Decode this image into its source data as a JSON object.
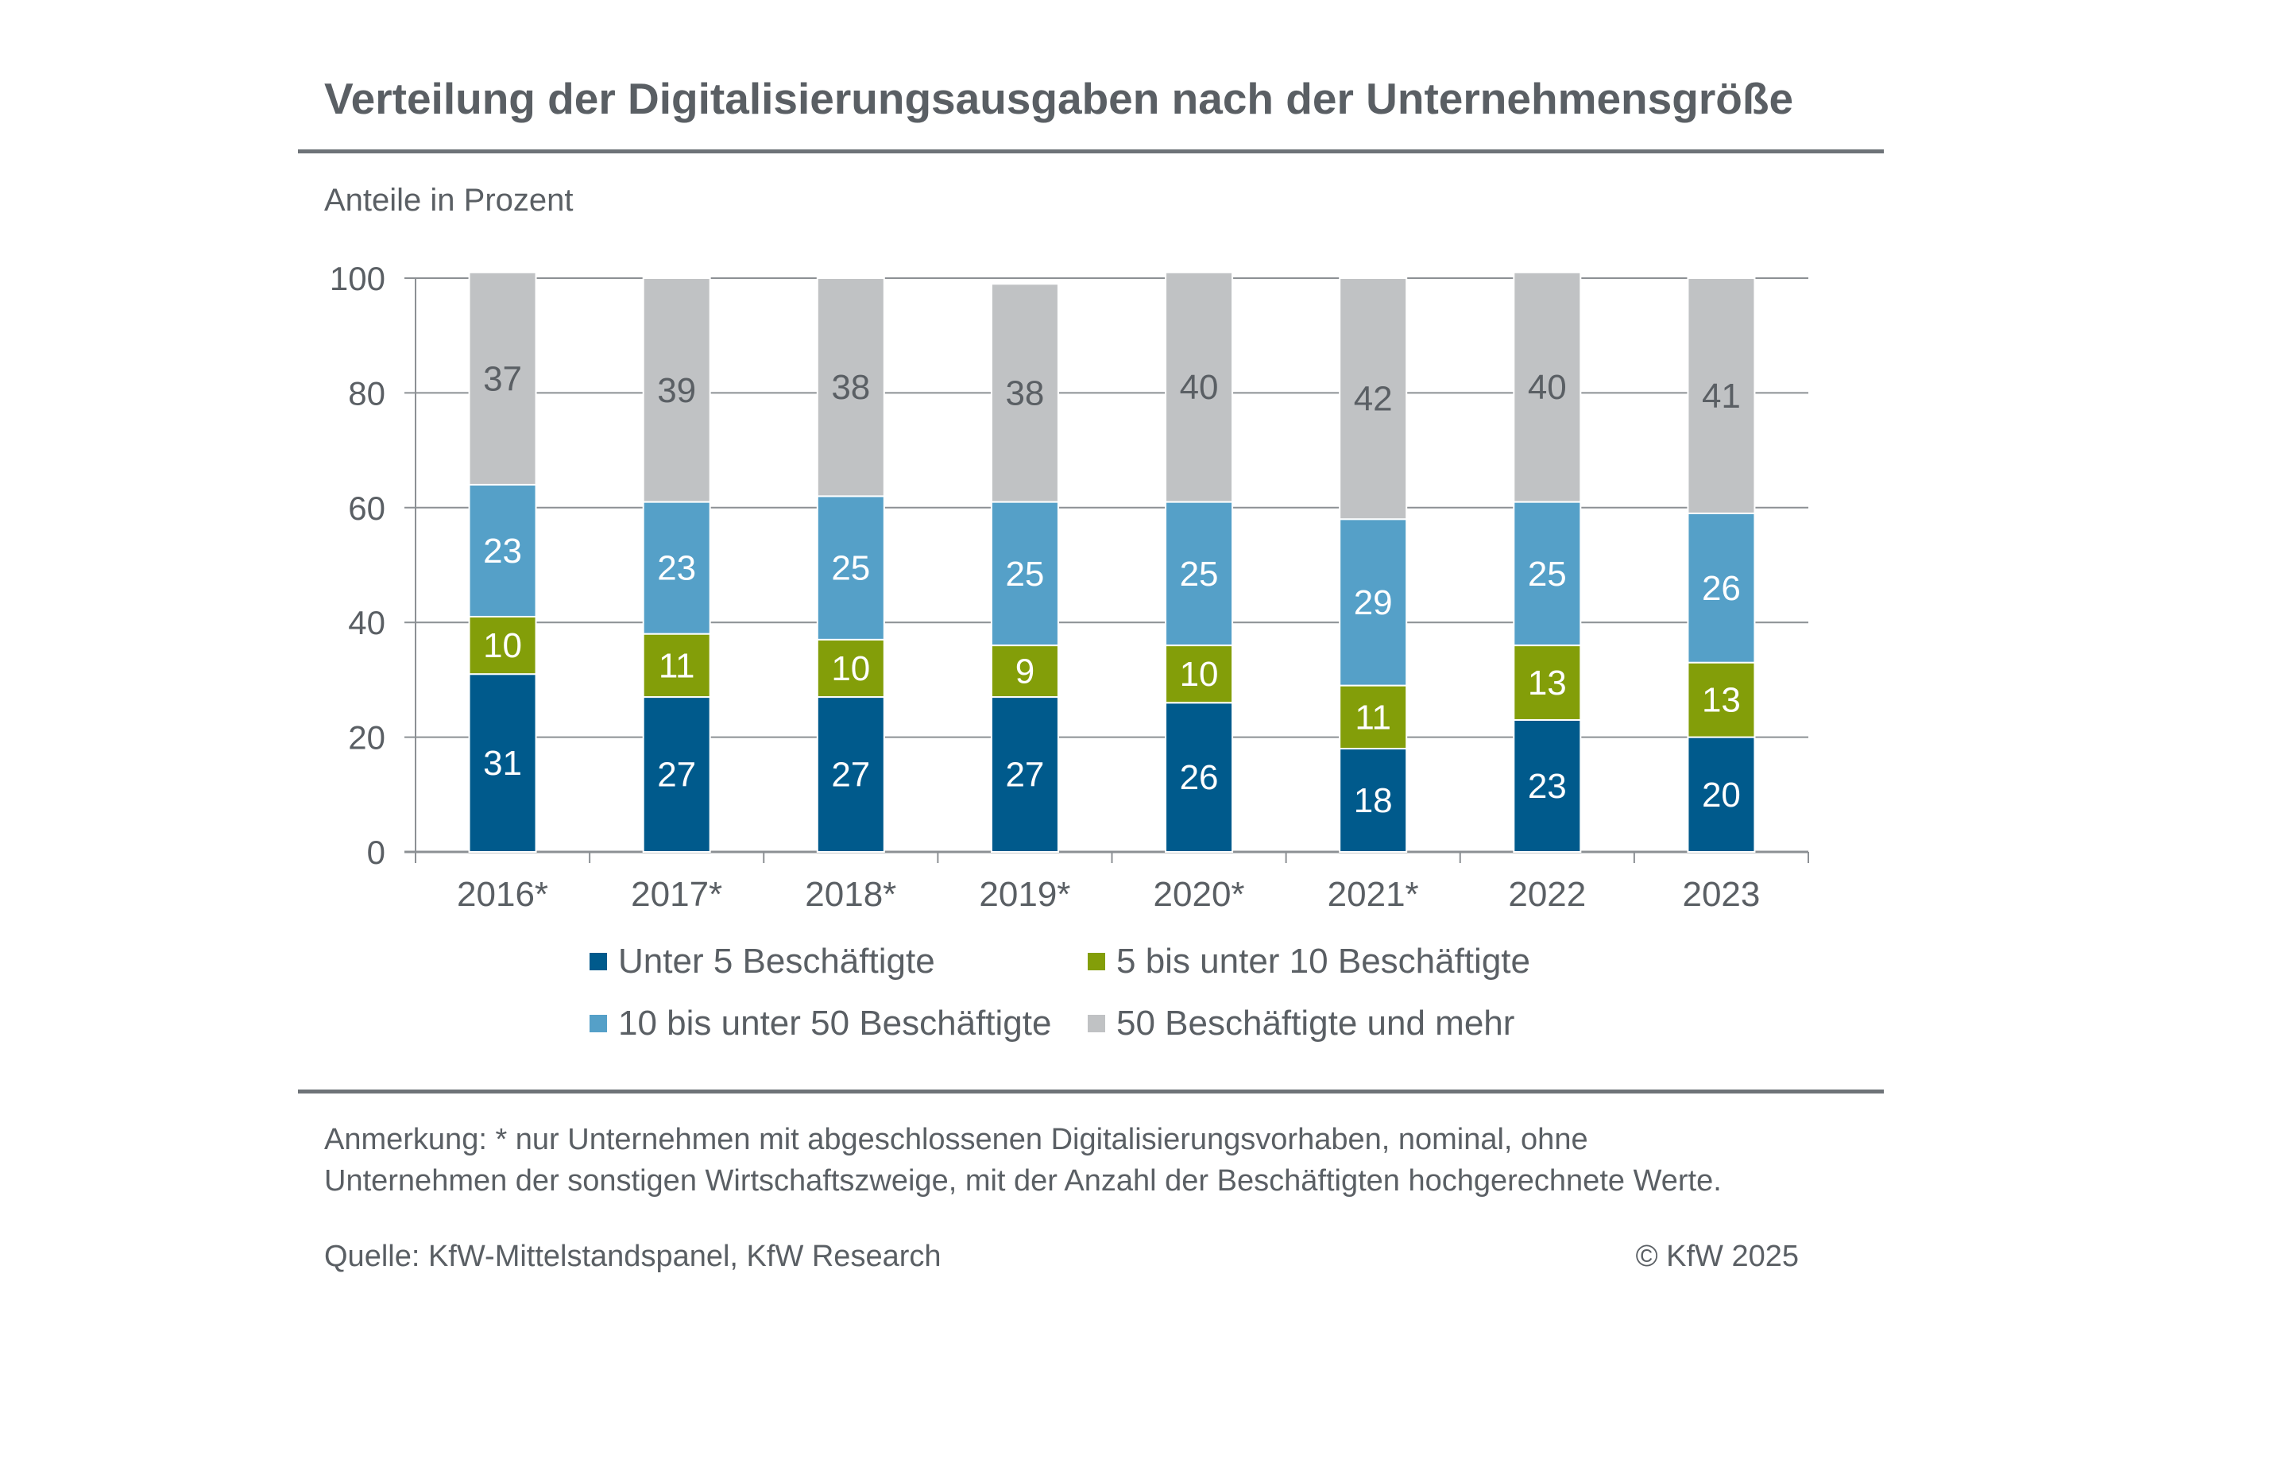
{
  "title": "Verteilung der Digitalisierungsausgaben nach der Unternehmensgröße",
  "subtitle": "Anteile in Prozent",
  "chart_data": {
    "type": "bar",
    "stacked": true,
    "title": "Verteilung der Digitalisierungsausgaben nach der Unternehmensgröße",
    "ylabel": "Anteile in Prozent",
    "xlabel": "",
    "ylim": [
      0,
      100
    ],
    "yticks": [
      0,
      20,
      40,
      60,
      80,
      100
    ],
    "grid": true,
    "legend_placement": "bottom",
    "categories": [
      "2016*",
      "2017*",
      "2018*",
      "2019*",
      "2020*",
      "2021*",
      "2022",
      "2023"
    ],
    "series": [
      {
        "name": "Unter 5 Beschäftigte",
        "color": "#005a8c",
        "label_color": "#ffffff",
        "values": [
          31,
          27,
          27,
          27,
          26,
          18,
          23,
          20
        ]
      },
      {
        "name": "5 bis unter 10 Beschäftigte",
        "color": "#839e09",
        "label_color": "#ffffff",
        "values": [
          10,
          11,
          10,
          9,
          10,
          11,
          13,
          13
        ]
      },
      {
        "name": "10 bis unter 50 Beschäftigte",
        "color": "#55a0c8",
        "label_color": "#ffffff",
        "values": [
          23,
          23,
          25,
          25,
          25,
          29,
          25,
          26
        ]
      },
      {
        "name": "50 Beschäftigte und mehr",
        "color": "#c0c2c4",
        "label_color": "#5a5f64",
        "values": [
          37,
          39,
          38,
          38,
          40,
          42,
          40,
          41
        ]
      }
    ]
  },
  "note": {
    "line1": "Anmerkung: * nur Unternehmen mit abgeschlossenen Digitalisierungsvorhaben, nominal, ohne",
    "line2": "Unternehmen der sonstigen Wirtschaftszweige, mit der Anzahl der Beschäftigten hochgerechnete Werte."
  },
  "source": "Quelle: KfW-Mittelstandspanel, KfW Research",
  "copyright": "© KfW 2025"
}
